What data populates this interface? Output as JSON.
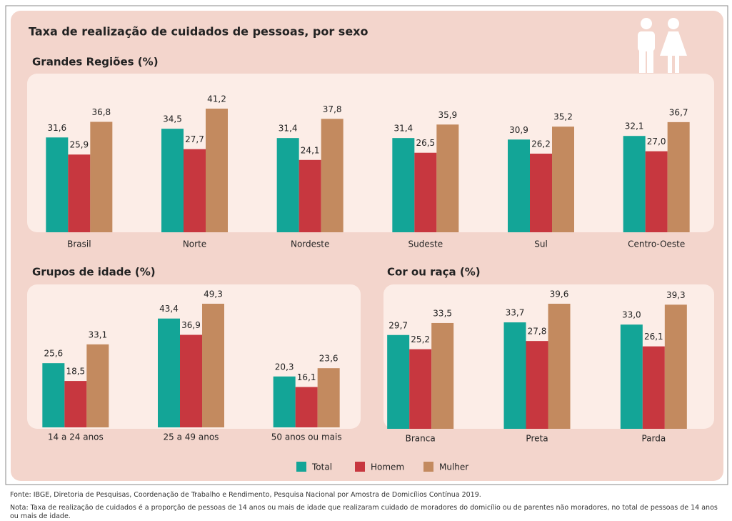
{
  "title": "Taxa de realização de cuidados de pessoas, por sexo",
  "source": "Fonte: IBGE, Diretoria de Pesquisas, Coordenação de Trabalho e Rendimento, Pesquisa Nacional por Amostra de Domicílios Contínua 2019.",
  "note": "Nota: Taxa de realização de cuidados é a proporção de pessoas de 14 anos ou mais de idade que realizaram cuidado de moradores do domicílio ou de parentes não moradores, no total de pessoas de 14 anos ou mais de idade.",
  "chart_data": [
    {
      "type": "bar",
      "title": "Grandes Regiões (%)",
      "categories": [
        "Brasil",
        "Norte",
        "Nordeste",
        "Sudeste",
        "Sul",
        "Centro-Oeste"
      ],
      "series": [
        {
          "name": "Total",
          "color": "#13a597",
          "values": [
            31.6,
            34.5,
            31.4,
            31.4,
            30.9,
            32.1
          ],
          "value_labels": [
            "31,6",
            "34,5",
            "31,4",
            "31,4",
            "30,9",
            "32,1"
          ]
        },
        {
          "name": "Homem",
          "color": "#c7373f",
          "values": [
            25.9,
            27.7,
            24.1,
            26.5,
            26.2,
            27.0
          ],
          "value_labels": [
            "25,9",
            "27,7",
            "24,1",
            "26,5",
            "26,2",
            "27,0"
          ]
        },
        {
          "name": "Mulher",
          "color": "#c38a5f",
          "values": [
            36.8,
            41.2,
            37.8,
            35.9,
            35.2,
            36.7
          ],
          "value_labels": [
            "36,8",
            "41,2",
            "37,8",
            "35,9",
            "35,2",
            "36,7"
          ]
        }
      ]
    },
    {
      "type": "bar",
      "title": "Grupos de idade (%)",
      "categories": [
        "14 a 24 anos",
        "25 a 49 anos",
        "50 anos ou mais"
      ],
      "series": [
        {
          "name": "Total",
          "color": "#13a597",
          "values": [
            25.6,
            43.4,
            20.3
          ],
          "value_labels": [
            "25,6",
            "43,4",
            "20,3"
          ]
        },
        {
          "name": "Homem",
          "color": "#c7373f",
          "values": [
            18.5,
            36.9,
            16.1
          ],
          "value_labels": [
            "18,5",
            "36,9",
            "16,1"
          ]
        },
        {
          "name": "Mulher",
          "color": "#c38a5f",
          "values": [
            33.1,
            49.3,
            23.6
          ],
          "value_labels": [
            "33,1",
            "49,3",
            "23,6"
          ]
        }
      ]
    },
    {
      "type": "bar",
      "title": "Cor ou raça (%)",
      "categories": [
        "Branca",
        "Preta",
        "Parda"
      ],
      "series": [
        {
          "name": "Total",
          "color": "#13a597",
          "values": [
            29.7,
            33.7,
            33.0
          ],
          "value_labels": [
            "29,7",
            "33,7",
            "33,0"
          ]
        },
        {
          "name": "Homem",
          "color": "#c7373f",
          "values": [
            25.2,
            27.8,
            26.1
          ],
          "value_labels": [
            "25,2",
            "27,8",
            "26,1"
          ]
        },
        {
          "name": "Mulher",
          "color": "#c38a5f",
          "values": [
            33.5,
            39.6,
            39.3
          ],
          "value_labels": [
            "33,5",
            "39,6",
            "39,3"
          ]
        }
      ]
    }
  ]
}
